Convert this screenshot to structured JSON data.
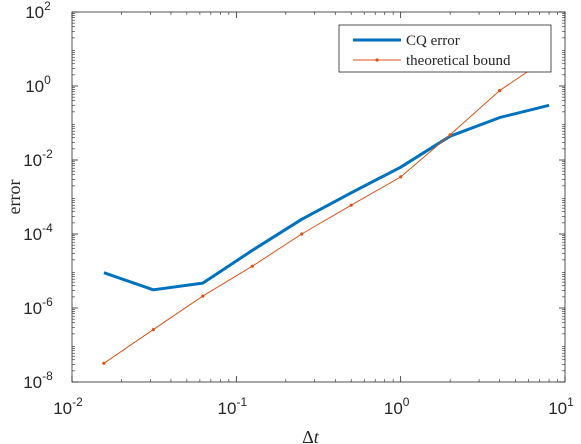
{
  "chart_data": {
    "type": "line",
    "xlabel_parts": {
      "prefix": "Δ",
      "var": "t"
    },
    "ylabel": "error",
    "xscale": "log",
    "yscale": "log",
    "xlim": [
      0.01,
      10
    ],
    "ylim": [
      1e-08,
      100
    ],
    "xticks": [
      {
        "base": "10",
        "exp": "-2",
        "value": 0.01
      },
      {
        "base": "10",
        "exp": "-1",
        "value": 0.1
      },
      {
        "base": "10",
        "exp": "0",
        "value": 1
      },
      {
        "base": "10",
        "exp": "1",
        "value": 10
      }
    ],
    "yticks": [
      {
        "base": "10",
        "exp": "-8",
        "value": 1e-08
      },
      {
        "base": "10",
        "exp": "-6",
        "value": 1e-06
      },
      {
        "base": "10",
        "exp": "-4",
        "value": 0.0001
      },
      {
        "base": "10",
        "exp": "-2",
        "value": 0.01
      },
      {
        "base": "10",
        "exp": "0",
        "value": 1
      },
      {
        "base": "10",
        "exp": "2",
        "value": 100
      }
    ],
    "grid": false,
    "legend_position": "top-right",
    "series": [
      {
        "name": "CQ error",
        "color": "#0072bd",
        "marker": "none",
        "x": [
          0.015625,
          0.03125,
          0.0625,
          0.125,
          0.25,
          0.5,
          1,
          2,
          4,
          8
        ],
        "y": [
          9e-06,
          3.1e-06,
          4.7e-06,
          3.6e-05,
          0.00025,
          0.0013,
          0.0064,
          0.044,
          0.14,
          0.3
        ]
      },
      {
        "name": "theoretical bound",
        "color": "#d95319",
        "marker": "dot",
        "x": [
          0.015625,
          0.03125,
          0.0625,
          0.125,
          0.25,
          0.5,
          1,
          2,
          4,
          8
        ],
        "y": [
          3.2e-08,
          2.6e-07,
          2.1e-06,
          1.35e-05,
          0.0001,
          0.0006,
          0.0035,
          0.048,
          0.75,
          6.0
        ]
      }
    ]
  }
}
